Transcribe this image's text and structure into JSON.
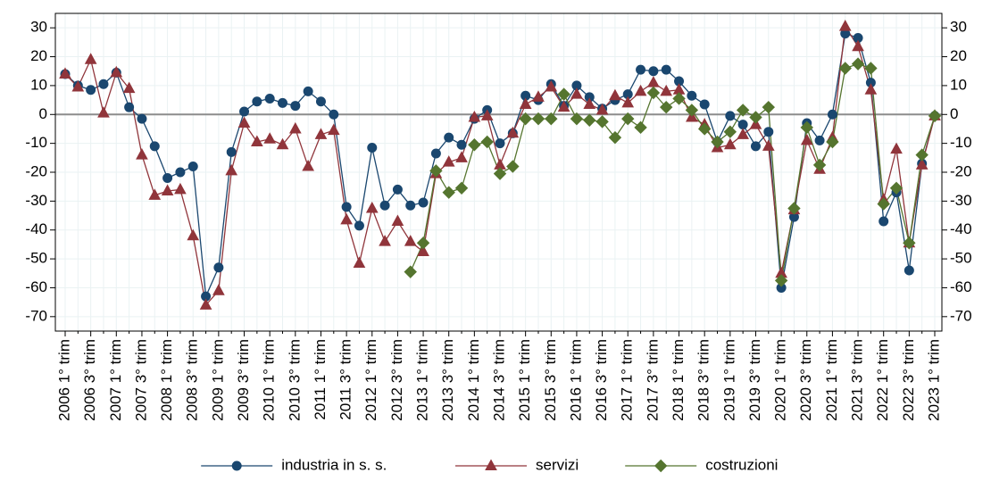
{
  "chart_data": {
    "type": "line",
    "categories": [
      "2006 1° trim",
      null,
      "2006 3° trim",
      null,
      "2007 1° trim",
      null,
      "2007 3° trim",
      null,
      "2008 1° trim",
      null,
      "2008 3° trim",
      null,
      "2009 1° trim",
      null,
      "2009 3° trim",
      null,
      "2010 1° trim",
      null,
      "2010 3° trim",
      null,
      "2011 1° trim",
      null,
      "2011 3° trim",
      null,
      "2012 1° trim",
      null,
      "2012 3° trim",
      null,
      "2013 1° trim",
      null,
      "2013 3° trim",
      null,
      "2014 1° trim",
      null,
      "2014 3° trim",
      null,
      "2015 1° trim",
      null,
      "2015 3° trim",
      null,
      "2016 1° trim",
      null,
      "2016 3° trim",
      null,
      "2017 1° trim",
      null,
      "2017 3° trim",
      null,
      "2018 1° trim",
      null,
      "2018 3° trim",
      null,
      "2019 1° trim",
      null,
      "2019 3° trim",
      null,
      "2020 1° trim",
      null,
      "2020 3° trim",
      null,
      "2021 1° trim",
      null,
      "2021 3° trim",
      null,
      "2022 1° trim",
      null,
      "2022 3° trim",
      null,
      "2023 1° trim"
    ],
    "series": [
      {
        "name": "industria in s. s.",
        "color": "#1a476f",
        "marker": "circle",
        "values": [
          14,
          10,
          8.5,
          10.5,
          14.5,
          2.5,
          -1.5,
          -11,
          -22,
          -20,
          -18,
          -63,
          -53,
          -13,
          1,
          4.5,
          5.5,
          4,
          3,
          8,
          4.5,
          0,
          -32,
          -38.5,
          -11.5,
          -31.5,
          -26,
          -31.5,
          -30.5,
          -13.5,
          -8,
          -10.5,
          -1.5,
          1.5,
          -10,
          -6.5,
          6.5,
          5,
          10.5,
          3,
          10,
          6,
          2,
          5,
          7,
          15.5,
          15,
          15.5,
          11.5,
          6.5,
          3.5,
          -9.5,
          -0.5,
          -3.5,
          -11,
          -6,
          -60,
          -35.5,
          -3,
          -9,
          0,
          28,
          26.5,
          11,
          -37,
          -27,
          -54,
          -17,
          -0.5
        ]
      },
      {
        "name": "servizi",
        "color": "#90353b",
        "marker": "triangle",
        "values": [
          14,
          9.5,
          19,
          0.5,
          14.5,
          9,
          -14,
          -28,
          -26.5,
          -26,
          -42,
          -66,
          -61,
          -19.5,
          -3,
          -9.5,
          -8.5,
          -10.5,
          -5,
          -18,
          -7,
          -5.5,
          -36.5,
          -51.5,
          -32.5,
          -44,
          -37,
          -44,
          -47.5,
          -20.5,
          -16.5,
          -15,
          -1,
          -0.5,
          -17.5,
          -6.5,
          3.5,
          6,
          9.5,
          2.5,
          7,
          3.5,
          1.5,
          6.5,
          4,
          8,
          11,
          8,
          8.5,
          -1,
          -3.5,
          -11.5,
          -10.5,
          -7,
          -3.5,
          -11,
          -55,
          -33,
          -9,
          -19,
          -8,
          30.5,
          23.5,
          8.5,
          -29.5,
          -12,
          -44.5,
          -17.5,
          -0.5
        ]
      },
      {
        "name": "costruzioni",
        "color": "#55752f",
        "marker": "diamond",
        "values": [
          null,
          null,
          null,
          null,
          null,
          null,
          null,
          null,
          null,
          null,
          null,
          null,
          null,
          null,
          null,
          null,
          null,
          null,
          null,
          null,
          null,
          null,
          null,
          null,
          null,
          null,
          null,
          -54.5,
          -44.5,
          -19.5,
          -27,
          -25.5,
          -10.5,
          -9.5,
          -20.5,
          -18,
          -1.5,
          -1.5,
          -1.5,
          7,
          -1.5,
          -2,
          -2.5,
          -8,
          -1.5,
          -4.5,
          7.5,
          2.5,
          5.5,
          1.5,
          -5,
          -9.5,
          -6,
          1.5,
          -1,
          2.5,
          -57.5,
          -32.5,
          -4.5,
          -17.5,
          -9.5,
          16,
          17.5,
          16,
          -31,
          -25.5,
          -44.5,
          -14,
          -0.5
        ]
      }
    ],
    "ylim": [
      -75,
      35
    ],
    "yticks": [
      -70,
      -60,
      -50,
      -40,
      -30,
      -20,
      -10,
      0,
      10,
      20,
      30
    ],
    "grid": true,
    "legend": "bottom"
  }
}
